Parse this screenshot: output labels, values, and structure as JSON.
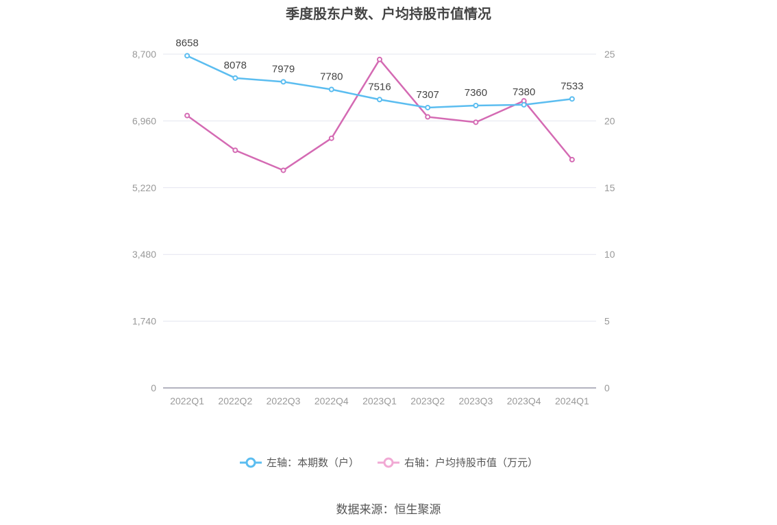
{
  "chart_data": {
    "type": "line",
    "title": "季度股东户数、户均持股市值情况",
    "categories": [
      "2022Q1",
      "2022Q2",
      "2022Q3",
      "2022Q4",
      "2023Q1",
      "2023Q2",
      "2023Q3",
      "2023Q4",
      "2024Q1"
    ],
    "left_axis": {
      "ticks": [
        "0",
        "1,740",
        "3,480",
        "5,220",
        "6,960",
        "8,700"
      ],
      "ylim": [
        0,
        8700
      ]
    },
    "right_axis": {
      "ticks": [
        "0",
        "5",
        "10",
        "15",
        "20",
        "25"
      ],
      "ylim": [
        0,
        25
      ]
    },
    "series": [
      {
        "name": "左轴：本期数（户）",
        "axis": "left",
        "color": "#5bbdf0",
        "values": [
          8658,
          8078,
          7979,
          7780,
          7516,
          7307,
          7360,
          7380,
          7533
        ],
        "labels": [
          "8658",
          "8078",
          "7979",
          "7780",
          "7516",
          "7307",
          "7360",
          "7380",
          "7533"
        ]
      },
      {
        "name": "右轴：户均持股市值（万元）",
        "axis": "right",
        "color": "#d46ab3",
        "legend_color": "#f1a9d4",
        "values": [
          20.4,
          17.8,
          16.3,
          18.7,
          24.6,
          20.3,
          19.9,
          21.5,
          17.1
        ]
      }
    ],
    "grid": true,
    "legend_position": "bottom"
  },
  "source": "数据来源：恒生聚源"
}
